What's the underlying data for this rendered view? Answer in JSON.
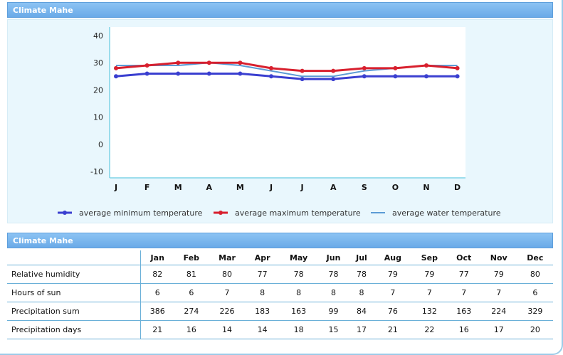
{
  "panel1_title": "Climate Mahe",
  "panel2_title": "Climate Mahe",
  "chart_data": {
    "type": "line",
    "categories": [
      "J",
      "F",
      "M",
      "A",
      "M",
      "J",
      "J",
      "A",
      "S",
      "O",
      "N",
      "D"
    ],
    "ylim": [
      -10,
      40
    ],
    "yticks": [
      -10,
      0,
      10,
      20,
      30,
      40
    ],
    "series": [
      {
        "name": "average minimum temperature",
        "color": "#3a3fd0",
        "values": [
          25,
          26,
          26,
          26,
          26,
          25,
          24,
          24,
          25,
          25,
          25,
          25
        ]
      },
      {
        "name": "average maximum temperature",
        "color": "#d8202e",
        "values": [
          28,
          29,
          30,
          30,
          30,
          28,
          27,
          27,
          28,
          28,
          29,
          28
        ]
      },
      {
        "name": "average water temperature",
        "color": "#5b9bd5",
        "values": [
          29,
          29,
          29,
          30,
          29,
          27,
          25,
          25,
          27,
          28,
          29,
          29
        ]
      }
    ]
  },
  "table": {
    "months": [
      "Jan",
      "Feb",
      "Mar",
      "Apr",
      "May",
      "Jun",
      "Jul",
      "Aug",
      "Sep",
      "Oct",
      "Nov",
      "Dec"
    ],
    "rows": [
      {
        "label": "Relative humidity",
        "values": [
          "82",
          "81",
          "80",
          "77",
          "78",
          "78",
          "78",
          "79",
          "79",
          "77",
          "79",
          "80"
        ]
      },
      {
        "label": "Hours of sun",
        "values": [
          "6",
          "6",
          "7",
          "8",
          "8",
          "8",
          "8",
          "7",
          "7",
          "7",
          "7",
          "6"
        ]
      },
      {
        "label": "Precipitation sum",
        "values": [
          "386",
          "274",
          "226",
          "183",
          "163",
          "99",
          "84",
          "76",
          "132",
          "163",
          "224",
          "329"
        ]
      },
      {
        "label": "Precipitation days",
        "values": [
          "21",
          "16",
          "14",
          "14",
          "18",
          "15",
          "17",
          "21",
          "22",
          "16",
          "17",
          "20"
        ]
      }
    ]
  }
}
